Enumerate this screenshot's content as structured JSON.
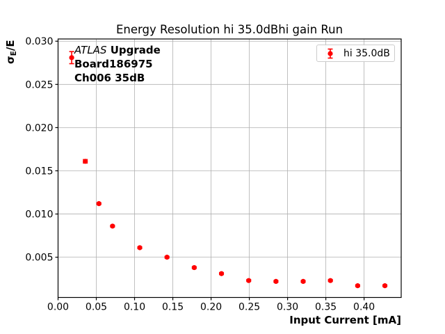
{
  "figure": {
    "title": "Energy Resolution hi 35.0dBhi gain Run",
    "xlabel": "Input Current [mA]",
    "ylabel_parts": [
      "σ",
      "E",
      "/E"
    ],
    "annotation": {
      "line1_italic": "ATLAS",
      "line1_bold": " Upgrade",
      "line2": "Board186975",
      "line3": "Ch006 35dB"
    },
    "legend": {
      "label": "hi 35.0dB"
    }
  },
  "colors": {
    "series": "#ff0000",
    "grid": "#b0b0b0",
    "axis": "#000000",
    "text": "#000000",
    "legend_border": "#cccccc"
  },
  "chart_data": {
    "type": "scatter",
    "title": "Energy Resolution hi 35.0dBhi gain Run",
    "xlabel": "Input Current [mA]",
    "ylabel": "σ_E/E",
    "grid": true,
    "legend_position": "upper right",
    "xlim": [
      0.0,
      0.4485
    ],
    "ylim": [
      0.00034,
      0.03026
    ],
    "xticks": [
      0.0,
      0.05,
      0.1,
      0.15,
      0.2,
      0.25,
      0.3,
      0.35,
      0.4
    ],
    "xtick_labels": [
      "0.00",
      "0.05",
      "0.10",
      "0.15",
      "0.20",
      "0.25",
      "0.30",
      "0.35",
      "0.40"
    ],
    "yticks": [
      0.005,
      0.01,
      0.015,
      0.02,
      0.025,
      0.03
    ],
    "ytick_labels": [
      "0.005",
      "0.010",
      "0.015",
      "0.020",
      "0.025",
      "0.030"
    ],
    "series": [
      {
        "name": "hi 35.0dB",
        "marker": "o",
        "color": "#ff0000",
        "x": [
          0.0178,
          0.0356,
          0.0534,
          0.0712,
          0.1068,
          0.1424,
          0.178,
          0.2136,
          0.2492,
          0.2848,
          0.3204,
          0.356,
          0.3916,
          0.4272
        ],
        "y": [
          0.0281,
          0.0161,
          0.0112,
          0.0086,
          0.0061,
          0.005,
          0.0038,
          0.0031,
          0.0023,
          0.0022,
          0.0022,
          0.0023,
          0.0017,
          0.0017
        ],
        "yerr": [
          0.0007,
          0.0002,
          0.0001,
          0.0001,
          0.0001,
          0.0001,
          0.0001,
          0.0001,
          0.0001,
          0.0001,
          0.0001,
          0.0001,
          0.0001,
          0.0001
        ]
      }
    ]
  }
}
